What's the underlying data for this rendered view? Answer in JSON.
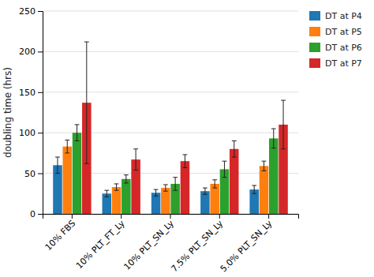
{
  "chart_data": {
    "type": "bar",
    "categories": [
      "10% FBS",
      "10% PLT_FT_Ly",
      "10% PLT_SN_Ly",
      "7.5% PLT_SN_Ly",
      "5.0% PLT_SN_Ly"
    ],
    "series": [
      {
        "name": "DT at P4",
        "values": [
          60,
          25,
          26,
          28,
          30
        ],
        "errors": [
          10,
          4,
          4,
          4,
          5
        ]
      },
      {
        "name": "DT at P5",
        "values": [
          83,
          33,
          32,
          37,
          59
        ],
        "errors": [
          8,
          4,
          4,
          5,
          6
        ]
      },
      {
        "name": "DT at P6",
        "values": [
          100,
          43,
          37,
          55,
          93
        ],
        "errors": [
          10,
          5,
          8,
          10,
          12
        ]
      },
      {
        "name": "DT at P7",
        "values": [
          137,
          67,
          65,
          80,
          110
        ],
        "errors": [
          75,
          13,
          8,
          10,
          30
        ]
      }
    ],
    "ylabel": "doubling time (hrs)",
    "ylim": [
      0,
      250
    ],
    "yticks": [
      0,
      50,
      100,
      150,
      200,
      250
    ],
    "grid": true,
    "legend": "right"
  }
}
